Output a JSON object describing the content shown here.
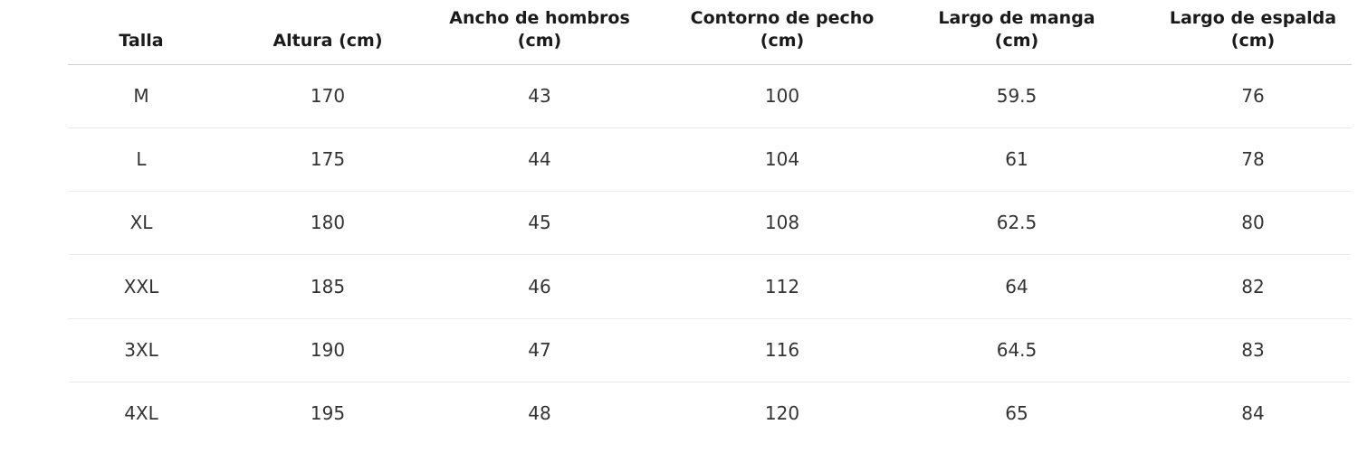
{
  "table": {
    "header": [
      [
        "Talla"
      ],
      [
        "Altura (cm)"
      ],
      [
        "Ancho de hombros",
        "(cm)"
      ],
      [
        "Contorno de pecho",
        "(cm)"
      ],
      [
        "Largo de manga",
        "(cm)"
      ],
      [
        "Largo de espalda",
        "(cm)"
      ]
    ],
    "rows": [
      [
        "M",
        170,
        43,
        100,
        59.5,
        76
      ],
      [
        "L",
        175,
        44,
        104,
        61,
        78
      ],
      [
        "XL",
        180,
        45,
        108,
        62.5,
        80
      ],
      [
        "XXL",
        185,
        46,
        112,
        64,
        82
      ],
      [
        "3XL",
        190,
        47,
        116,
        64.5,
        83
      ],
      [
        "4XL",
        195,
        48,
        120,
        65,
        84
      ]
    ]
  }
}
